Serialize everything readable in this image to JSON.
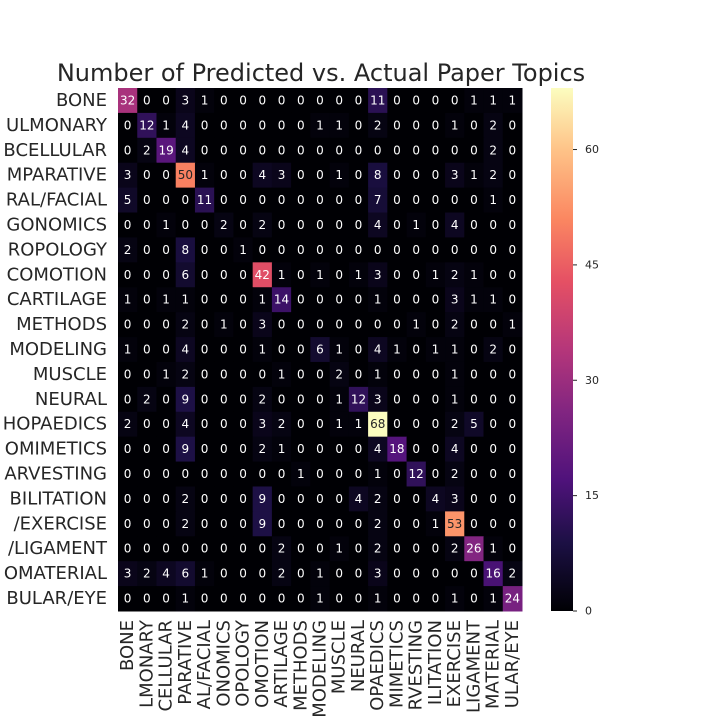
{
  "chart_data": {
    "type": "heatmap",
    "title": "Number of Predicted vs. Actual Paper Topics",
    "colormap": "magma",
    "x_categories": [
      "BONE",
      "LMONARY",
      "CELLULAR",
      "PARATIVE",
      "AL/FACIAL",
      "ONOMICS",
      "OPOLOGY",
      "OMOTION",
      "ARTILAGE",
      "METHODS",
      "MODELING",
      "MUSCLE",
      "NEURAL",
      "OPAEDICS",
      "MIMETICS",
      "RVESTING",
      "ILITATION",
      "EXERCISE",
      "LIGAMENT",
      "MATERIAL",
      "ULAR/EYE"
    ],
    "y_categories": [
      "BONE",
      "ULMONARY",
      "BCELLULAR",
      "MPARATIVE",
      "RAL/FACIAL",
      "GONOMICS",
      "ROPOLOGY",
      "COMOTION",
      "CARTILAGE",
      "METHODS",
      "MODELING",
      "MUSCLE",
      "NEURAL",
      "HOPAEDICS",
      "OMIMETICS",
      "ARVESTING",
      "BILITATION",
      "/EXERCISE",
      "/LIGAMENT",
      "OMATERIAL",
      "BULAR/EYE"
    ],
    "values": [
      [
        32,
        0,
        0,
        3,
        1,
        0,
        0,
        0,
        0,
        0,
        0,
        0,
        0,
        11,
        0,
        0,
        0,
        0,
        1,
        1,
        1
      ],
      [
        0,
        12,
        1,
        4,
        0,
        0,
        0,
        0,
        0,
        0,
        1,
        1,
        0,
        2,
        0,
        0,
        0,
        1,
        0,
        2,
        0
      ],
      [
        0,
        2,
        19,
        4,
        0,
        0,
        0,
        0,
        0,
        0,
        0,
        0,
        0,
        0,
        0,
        0,
        0,
        0,
        0,
        2,
        0
      ],
      [
        3,
        0,
        0,
        50,
        1,
        0,
        0,
        4,
        3,
        0,
        0,
        1,
        0,
        8,
        0,
        0,
        0,
        3,
        1,
        2,
        0
      ],
      [
        5,
        0,
        0,
        0,
        11,
        0,
        0,
        0,
        0,
        0,
        0,
        0,
        0,
        7,
        0,
        0,
        0,
        0,
        0,
        1,
        0
      ],
      [
        0,
        0,
        1,
        0,
        0,
        2,
        0,
        2,
        0,
        0,
        0,
        0,
        0,
        4,
        0,
        1,
        0,
        4,
        0,
        0,
        0
      ],
      [
        2,
        0,
        0,
        8,
        0,
        0,
        1,
        0,
        0,
        0,
        0,
        0,
        0,
        0,
        0,
        0,
        0,
        0,
        0,
        0,
        0
      ],
      [
        0,
        0,
        0,
        6,
        0,
        0,
        0,
        42,
        1,
        0,
        1,
        0,
        1,
        3,
        0,
        0,
        1,
        2,
        1,
        0,
        0
      ],
      [
        1,
        0,
        1,
        1,
        0,
        0,
        0,
        1,
        14,
        0,
        0,
        0,
        0,
        1,
        0,
        0,
        0,
        3,
        1,
        1,
        0
      ],
      [
        0,
        0,
        0,
        2,
        0,
        1,
        0,
        3,
        0,
        0,
        0,
        0,
        0,
        0,
        0,
        1,
        0,
        2,
        0,
        0,
        1
      ],
      [
        1,
        0,
        0,
        4,
        0,
        0,
        0,
        1,
        0,
        0,
        6,
        1,
        0,
        4,
        1,
        0,
        1,
        1,
        0,
        2,
        0
      ],
      [
        0,
        0,
        1,
        2,
        0,
        0,
        0,
        0,
        1,
        0,
        0,
        2,
        0,
        1,
        0,
        0,
        0,
        1,
        0,
        0,
        0
      ],
      [
        0,
        2,
        0,
        9,
        0,
        0,
        0,
        2,
        0,
        0,
        0,
        1,
        12,
        3,
        0,
        0,
        0,
        1,
        0,
        0,
        0
      ],
      [
        2,
        0,
        0,
        4,
        0,
        0,
        0,
        3,
        2,
        0,
        0,
        1,
        1,
        68,
        0,
        0,
        0,
        2,
        5,
        0,
        0
      ],
      [
        0,
        0,
        0,
        9,
        0,
        0,
        0,
        2,
        1,
        0,
        0,
        0,
        0,
        4,
        18,
        0,
        0,
        4,
        0,
        0,
        0
      ],
      [
        0,
        0,
        0,
        0,
        0,
        0,
        0,
        0,
        0,
        1,
        0,
        0,
        0,
        1,
        0,
        12,
        0,
        2,
        0,
        0,
        0
      ],
      [
        0,
        0,
        0,
        2,
        0,
        0,
        0,
        9,
        0,
        0,
        0,
        0,
        4,
        2,
        0,
        0,
        4,
        3,
        0,
        0,
        0
      ],
      [
        0,
        0,
        0,
        2,
        0,
        0,
        0,
        9,
        0,
        0,
        0,
        0,
        0,
        2,
        0,
        0,
        1,
        53,
        0,
        0,
        0
      ],
      [
        0,
        0,
        0,
        0,
        0,
        0,
        0,
        0,
        2,
        0,
        0,
        1,
        0,
        2,
        0,
        0,
        0,
        2,
        26,
        1,
        0
      ],
      [
        3,
        2,
        4,
        6,
        1,
        0,
        0,
        0,
        2,
        0,
        1,
        0,
        0,
        3,
        0,
        0,
        0,
        0,
        0,
        16,
        2
      ],
      [
        0,
        0,
        0,
        1,
        0,
        0,
        0,
        0,
        0,
        0,
        1,
        0,
        0,
        1,
        0,
        0,
        0,
        1,
        0,
        1,
        24
      ]
    ],
    "clim": [
      0,
      68
    ],
    "cticks": [
      0,
      15,
      30,
      45,
      60
    ]
  }
}
